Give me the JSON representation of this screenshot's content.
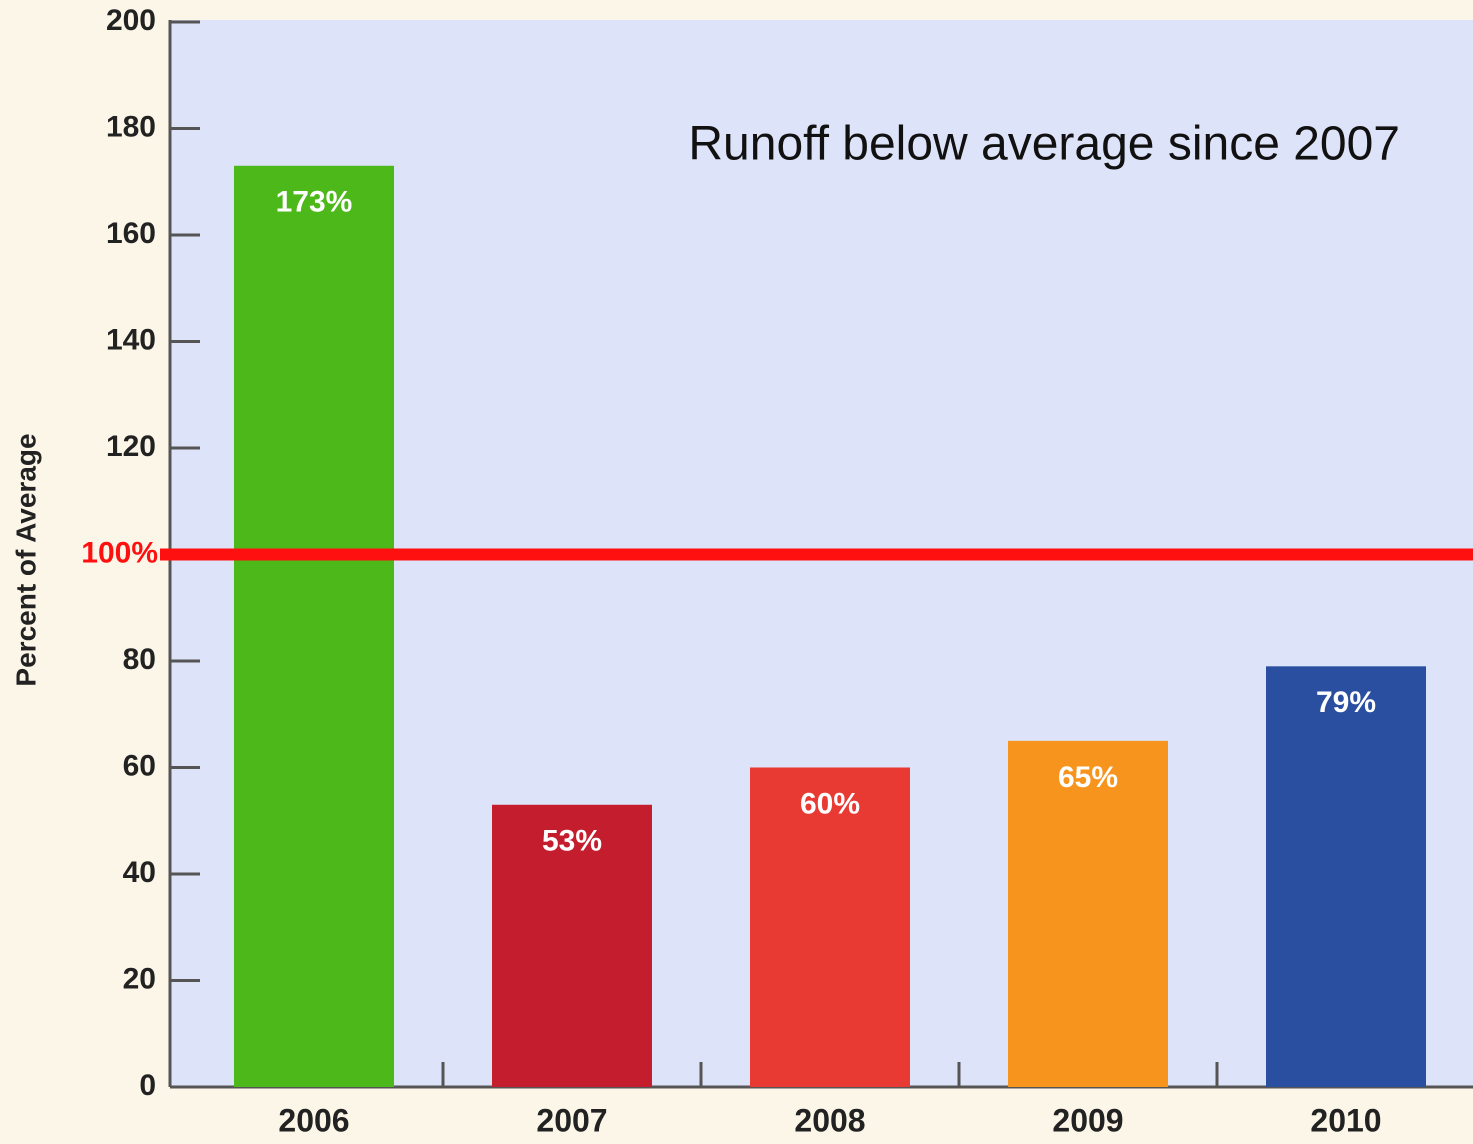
{
  "chart_data": {
    "type": "bar",
    "annotation": "Runoff below average since 2007",
    "y_label": "Percent of Average",
    "categories": [
      "2006",
      "2007",
      "2008",
      "2009",
      "2010"
    ],
    "values": [
      173,
      53,
      60,
      65,
      79
    ],
    "value_labels": [
      "173%",
      "53%",
      "60%",
      "65%",
      "79%"
    ],
    "colors": [
      "#4cb81a",
      "#c41e2e",
      "#e83a33",
      "#f7941d",
      "#2b4fa0"
    ],
    "ylim": [
      0,
      200
    ],
    "yticks": [
      0,
      20,
      40,
      60,
      80,
      100,
      120,
      140,
      160,
      180,
      200
    ],
    "reference_line": {
      "value": 100,
      "label": "100%",
      "color": "#ff1010"
    }
  }
}
